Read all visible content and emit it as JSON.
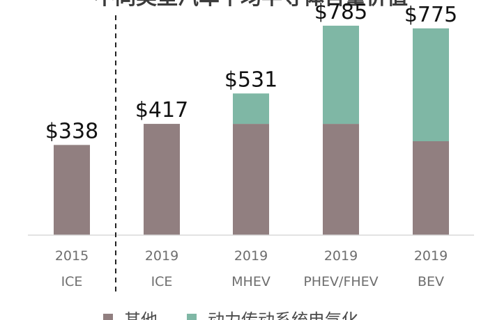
{
  "chart_data": {
    "type": "bar",
    "stacked": true,
    "title": "不同类型汽车平均半导体含量价值",
    "categories": [
      {
        "year": "2015",
        "type": "ICE"
      },
      {
        "year": "2019",
        "type": "ICE"
      },
      {
        "year": "2019",
        "type": "MHEV"
      },
      {
        "year": "2019",
        "type": "PHEV/FHEV"
      },
      {
        "year": "2019",
        "type": "BEV"
      }
    ],
    "totals_labels": [
      "$338",
      "$417",
      "$531",
      "$785",
      "$775"
    ],
    "series": [
      {
        "name": "其他",
        "color": "#917f80",
        "values": [
          338,
          417,
          417,
          417,
          352
        ]
      },
      {
        "name": "动力传动系统电气化",
        "color": "#7fb7a5",
        "values": [
          0,
          0,
          114,
          368,
          423
        ]
      }
    ],
    "ylim": [
      0,
      850
    ],
    "grid": false,
    "legend": "bottom",
    "divider_after_index": 0
  }
}
